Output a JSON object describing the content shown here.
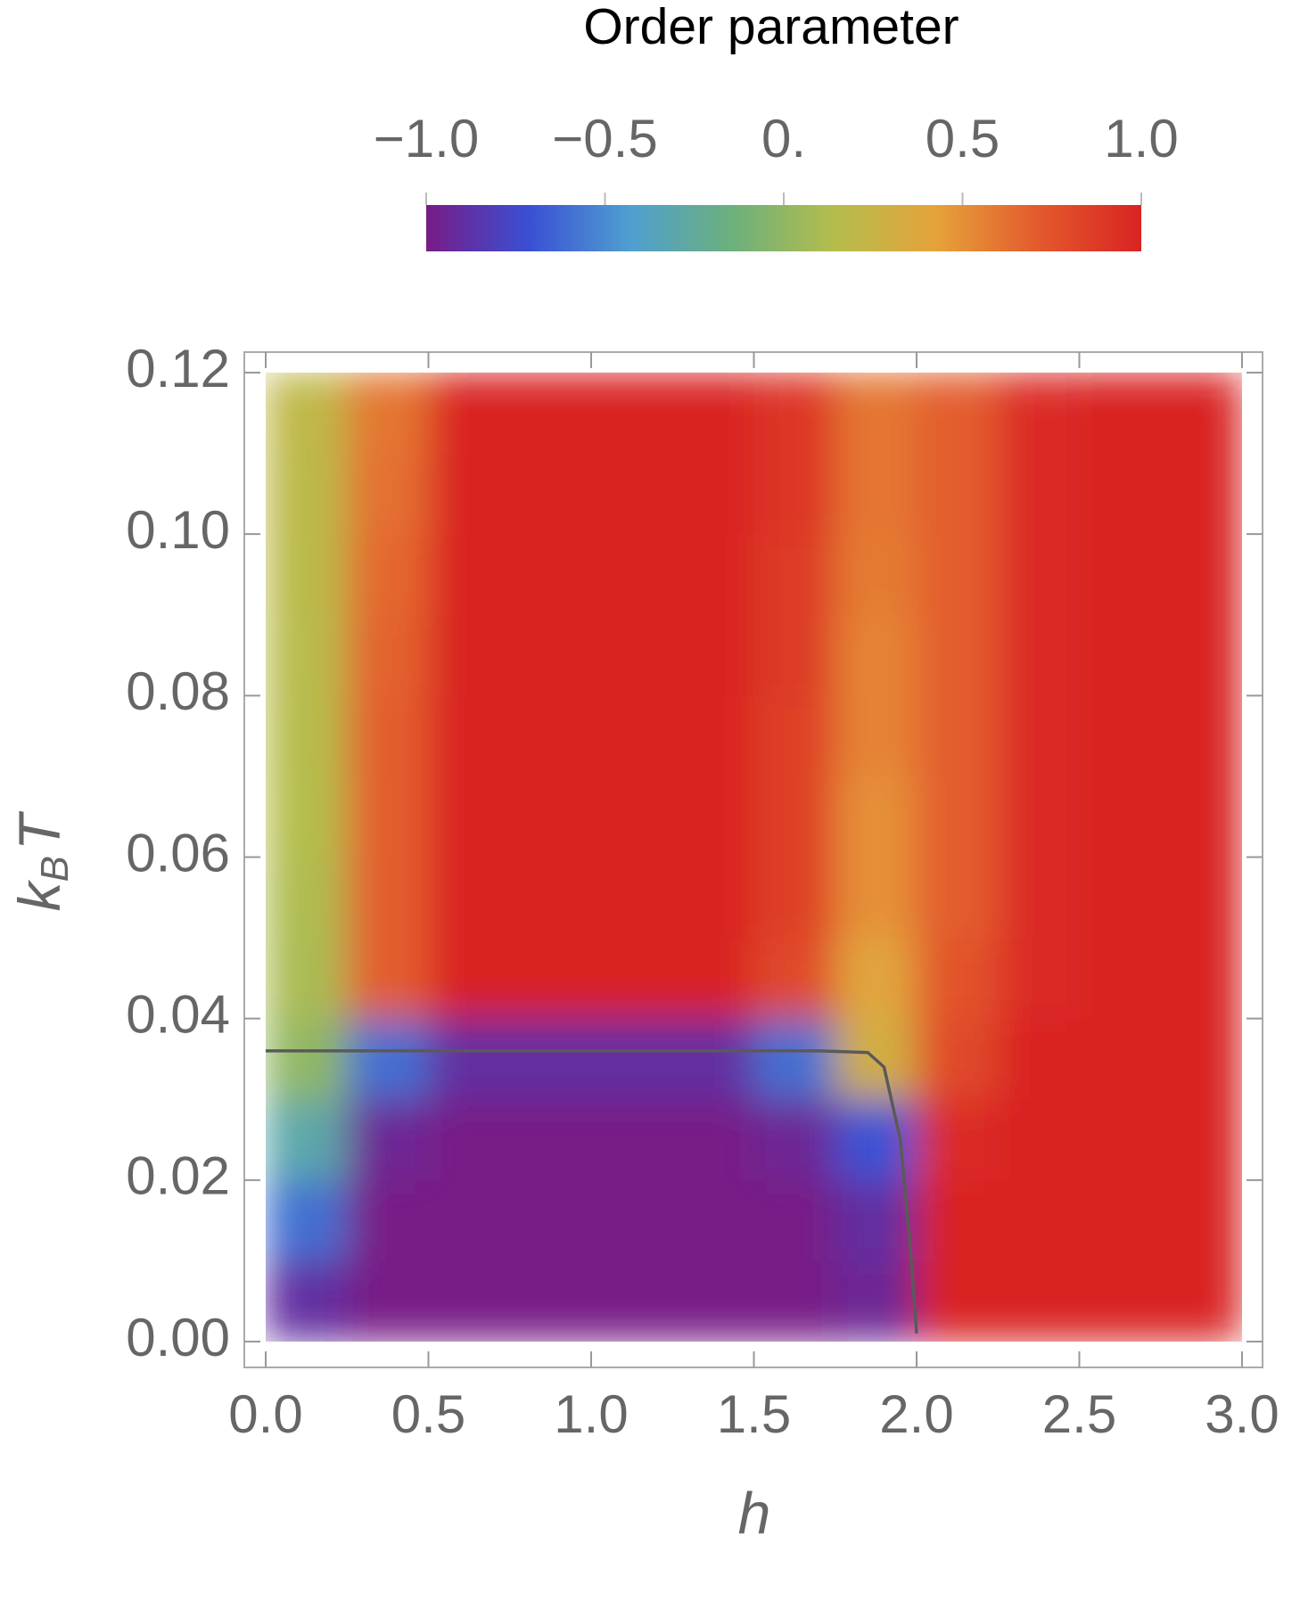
{
  "chart_data": {
    "type": "density",
    "colorbar_title": "Order parameter",
    "colorbar_lim": [
      -1,
      1
    ],
    "colorbar_ticks": [
      {
        "value": -1,
        "label": "−1.0"
      },
      {
        "value": -0.5,
        "label": "−0.5"
      },
      {
        "value": 0,
        "label": "0."
      },
      {
        "value": 0.5,
        "label": "0.5"
      },
      {
        "value": 1,
        "label": "1.0"
      }
    ],
    "colors": [
      "#781c86",
      "#3a4fd4",
      "#4f9fd0",
      "#6cb07c",
      "#b5bd4c",
      "#e6a23a",
      "#e3592c",
      "#d92323"
    ],
    "xlabel": "h",
    "ylabel": [
      "k",
      "B",
      "T"
    ],
    "xlim": [
      0,
      3
    ],
    "ylim": [
      0,
      0.12
    ],
    "xticks": [
      {
        "value": 0,
        "label": "0.0"
      },
      {
        "value": 0.5,
        "label": "0.5"
      },
      {
        "value": 1,
        "label": "1.0"
      },
      {
        "value": 1.5,
        "label": "1.5"
      },
      {
        "value": 2,
        "label": "2.0"
      },
      {
        "value": 2.5,
        "label": "2.5"
      },
      {
        "value": 3,
        "label": "3.0"
      }
    ],
    "yticks": [
      {
        "value": 0,
        "label": "0.00"
      },
      {
        "value": 0.02,
        "label": "0.02"
      },
      {
        "value": 0.04,
        "label": "0.04"
      },
      {
        "value": 0.06,
        "label": "0.06"
      },
      {
        "value": 0.08,
        "label": "0.08"
      },
      {
        "value": 0.1,
        "label": "0.10"
      },
      {
        "value": 0.12,
        "label": "0.12"
      }
    ],
    "x": [
      0.125,
      0.375,
      0.625,
      0.875,
      1.125,
      1.375,
      1.625,
      1.875,
      2.125,
      2.375,
      2.625,
      2.875
    ],
    "y": [
      0.005,
      0.015,
      0.025,
      0.035,
      0.045,
      0.055,
      0.065,
      0.075,
      0.085,
      0.095,
      0.105,
      0.115
    ],
    "z": [
      [
        -0.9,
        -1,
        -1,
        -1,
        -1,
        -1,
        -1,
        -0.95,
        1,
        1,
        1,
        1
      ],
      [
        -0.6,
        -1,
        -1,
        -1,
        -1,
        -1,
        -1,
        -0.9,
        1,
        1,
        1,
        1
      ],
      [
        -0.3,
        -0.95,
        -1,
        -1,
        -1,
        -1,
        -0.95,
        -0.7,
        0.95,
        1,
        1,
        1
      ],
      [
        0,
        -0.6,
        -0.9,
        -0.9,
        -0.9,
        -0.9,
        -0.6,
        0.3,
        0.8,
        1,
        1,
        1
      ],
      [
        0.1,
        0.7,
        1,
        1,
        1,
        1,
        0.8,
        0.4,
        0.75,
        0.95,
        1,
        1
      ],
      [
        0.12,
        0.7,
        1,
        1,
        1,
        1,
        0.85,
        0.5,
        0.7,
        0.95,
        1,
        1
      ],
      [
        0.14,
        0.7,
        1,
        1,
        1,
        1,
        0.85,
        0.5,
        0.7,
        0.95,
        1,
        1
      ],
      [
        0.15,
        0.7,
        1,
        1,
        1,
        1,
        0.85,
        0.55,
        0.7,
        0.95,
        1,
        1
      ],
      [
        0.16,
        0.68,
        1,
        1,
        1,
        1,
        0.88,
        0.55,
        0.7,
        0.95,
        1,
        1
      ],
      [
        0.17,
        0.66,
        1,
        1,
        1,
        1,
        0.88,
        0.58,
        0.7,
        0.95,
        1,
        1
      ],
      [
        0.18,
        0.63,
        1,
        1,
        1,
        1,
        0.9,
        0.6,
        0.7,
        0.95,
        1,
        1
      ],
      [
        0.2,
        0.6,
        1,
        1,
        1,
        1,
        0.9,
        0.6,
        0.7,
        0.95,
        1,
        1
      ]
    ],
    "contour": {
      "color": "#5a5a5a",
      "x": [
        0,
        1.7,
        1.85,
        1.9,
        1.95,
        1.98,
        2.0
      ],
      "y": [
        0.036,
        0.036,
        0.0358,
        0.034,
        0.025,
        0.012,
        0.001
      ]
    }
  }
}
